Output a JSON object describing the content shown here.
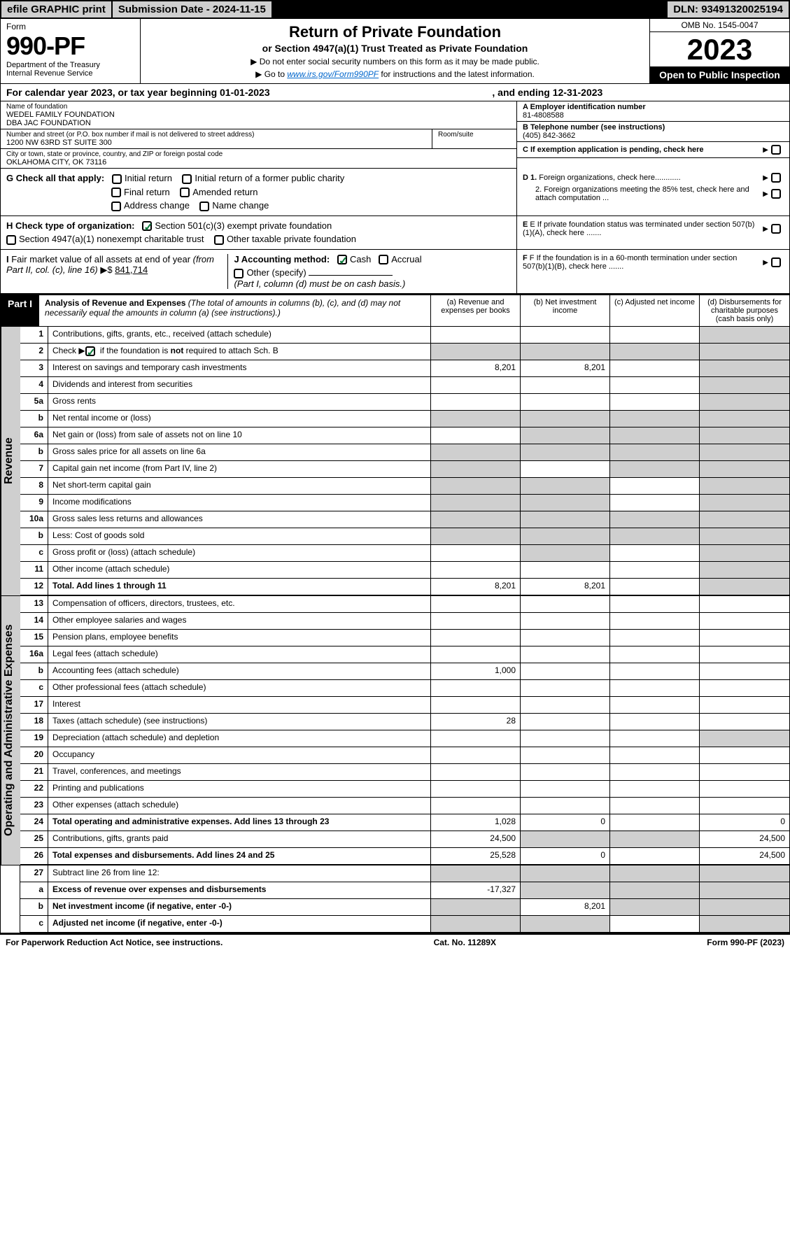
{
  "top_bar": {
    "efile": "efile GRAPHIC print",
    "submission": "Submission Date - 2024-11-15",
    "dln": "DLN: 93491320025194"
  },
  "header": {
    "form_label": "Form",
    "form_num": "990-PF",
    "dept1": "Department of the Treasury",
    "dept2": "Internal Revenue Service",
    "title": "Return of Private Foundation",
    "subtitle": "or Section 4947(a)(1) Trust Treated as Private Foundation",
    "note1": "▶ Do not enter social security numbers on this form as it may be made public.",
    "note2_pre": "▶ Go to ",
    "note2_link": "www.irs.gov/Form990PF",
    "note2_post": " for instructions and the latest information.",
    "omb": "OMB No. 1545-0047",
    "year": "2023",
    "open": "Open to Public Inspection"
  },
  "calendar": {
    "left": "For calendar year 2023, or tax year beginning 01-01-2023",
    "right": ", and ending 12-31-2023"
  },
  "identity": {
    "name_label": "Name of foundation",
    "name1": "WEDEL FAMILY FOUNDATION",
    "name2": "DBA JAC FOUNDATION",
    "street_label": "Number and street (or P.O. box number if mail is not delivered to street address)",
    "street": "1200 NW 63RD ST SUITE 300",
    "room_label": "Room/suite",
    "city_label": "City or town, state or province, country, and ZIP or foreign postal code",
    "city": "OKLAHOMA CITY, OK  73116",
    "a_label": "A Employer identification number",
    "a_val": "81-4808588",
    "b_label": "B Telephone number (see instructions)",
    "b_val": "(405) 842-3662",
    "c_label": "C If exemption application is pending, check here",
    "d1": "D 1. Foreign organizations, check here............",
    "d2": "2. Foreign organizations meeting the 85% test, check here and attach computation ...",
    "e_label": "E  If private foundation status was terminated under section 507(b)(1)(A), check here .......",
    "f_label": "F  If the foundation is in a 60-month termination under section 507(b)(1)(B), check here .......",
    "g_label": "G Check all that apply:",
    "g_opts": [
      "Initial return",
      "Initial return of a former public charity",
      "Final return",
      "Amended return",
      "Address change",
      "Name change"
    ],
    "h_label": "H Check type of organization:",
    "h_opt1": "Section 501(c)(3) exempt private foundation",
    "h_opt2": "Section 4947(a)(1) nonexempt charitable trust",
    "h_opt3": "Other taxable private foundation",
    "i_label": "I Fair market value of all assets at end of year (from Part II, col. (c), line 16) ▶$ ",
    "i_val": "841,714",
    "j_label": "J Accounting method:",
    "j_cash": "Cash",
    "j_accrual": "Accrual",
    "j_other": "Other (specify)",
    "j_note": "(Part I, column (d) must be on cash basis.)"
  },
  "part1": {
    "label": "Part I",
    "title": "Analysis of Revenue and Expenses",
    "title_note": " (The total of amounts in columns (b), (c), and (d) may not necessarily equal the amounts in column (a) (see instructions).)",
    "col_a": "(a)  Revenue and expenses per books",
    "col_b": "(b)  Net investment income",
    "col_c": "(c)  Adjusted net income",
    "col_d": "(d)  Disbursements for charitable purposes (cash basis only)"
  },
  "revenue_label": "Revenue",
  "expenses_label": "Operating and Administrative Expenses",
  "rows": {
    "r1": {
      "n": "1",
      "d": "Contributions, gifts, grants, etc., received (attach schedule)"
    },
    "r2": {
      "n": "2",
      "d": "Check ▶",
      "d2": " if the foundation is not required to attach Sch. B"
    },
    "r3": {
      "n": "3",
      "d": "Interest on savings and temporary cash investments",
      "a": "8,201",
      "b": "8,201"
    },
    "r4": {
      "n": "4",
      "d": "Dividends and interest from securities"
    },
    "r5a": {
      "n": "5a",
      "d": "Gross rents"
    },
    "r5b": {
      "n": "b",
      "d": "Net rental income or (loss)"
    },
    "r6a": {
      "n": "6a",
      "d": "Net gain or (loss) from sale of assets not on line 10"
    },
    "r6b": {
      "n": "b",
      "d": "Gross sales price for all assets on line 6a"
    },
    "r7": {
      "n": "7",
      "d": "Capital gain net income (from Part IV, line 2)"
    },
    "r8": {
      "n": "8",
      "d": "Net short-term capital gain"
    },
    "r9": {
      "n": "9",
      "d": "Income modifications"
    },
    "r10a": {
      "n": "10a",
      "d": "Gross sales less returns and allowances"
    },
    "r10b": {
      "n": "b",
      "d": "Less: Cost of goods sold"
    },
    "r10c": {
      "n": "c",
      "d": "Gross profit or (loss) (attach schedule)"
    },
    "r11": {
      "n": "11",
      "d": "Other income (attach schedule)"
    },
    "r12": {
      "n": "12",
      "d": "Total. Add lines 1 through 11",
      "a": "8,201",
      "b": "8,201"
    },
    "r13": {
      "n": "13",
      "d": "Compensation of officers, directors, trustees, etc."
    },
    "r14": {
      "n": "14",
      "d": "Other employee salaries and wages"
    },
    "r15": {
      "n": "15",
      "d": "Pension plans, employee benefits"
    },
    "r16a": {
      "n": "16a",
      "d": "Legal fees (attach schedule)"
    },
    "r16b": {
      "n": "b",
      "d": "Accounting fees (attach schedule)",
      "a": "1,000"
    },
    "r16c": {
      "n": "c",
      "d": "Other professional fees (attach schedule)"
    },
    "r17": {
      "n": "17",
      "d": "Interest"
    },
    "r18": {
      "n": "18",
      "d": "Taxes (attach schedule) (see instructions)",
      "a": "28"
    },
    "r19": {
      "n": "19",
      "d": "Depreciation (attach schedule) and depletion"
    },
    "r20": {
      "n": "20",
      "d": "Occupancy"
    },
    "r21": {
      "n": "21",
      "d": "Travel, conferences, and meetings"
    },
    "r22": {
      "n": "22",
      "d": "Printing and publications"
    },
    "r23": {
      "n": "23",
      "d": "Other expenses (attach schedule)"
    },
    "r24": {
      "n": "24",
      "d": "Total operating and administrative expenses. Add lines 13 through 23",
      "a": "1,028",
      "b": "0",
      "dd": "0"
    },
    "r25": {
      "n": "25",
      "d": "Contributions, gifts, grants paid",
      "a": "24,500",
      "dd": "24,500"
    },
    "r26": {
      "n": "26",
      "d": "Total expenses and disbursements. Add lines 24 and 25",
      "a": "25,528",
      "b": "0",
      "dd": "24,500"
    },
    "r27": {
      "n": "27",
      "d": "Subtract line 26 from line 12:"
    },
    "r27a": {
      "n": "a",
      "d": "Excess of revenue over expenses and disbursements",
      "a": "-17,327"
    },
    "r27b": {
      "n": "b",
      "d": "Net investment income (if negative, enter -0-)",
      "b": "8,201"
    },
    "r27c": {
      "n": "c",
      "d": "Adjusted net income (if negative, enter -0-)"
    }
  },
  "footer": {
    "left": "For Paperwork Reduction Act Notice, see instructions.",
    "mid": "Cat. No. 11289X",
    "right": "Form 990-PF (2023)"
  },
  "colors": {
    "shade": "#cfcfcf",
    "link": "#0066cc",
    "check": "#0a7a3a"
  }
}
